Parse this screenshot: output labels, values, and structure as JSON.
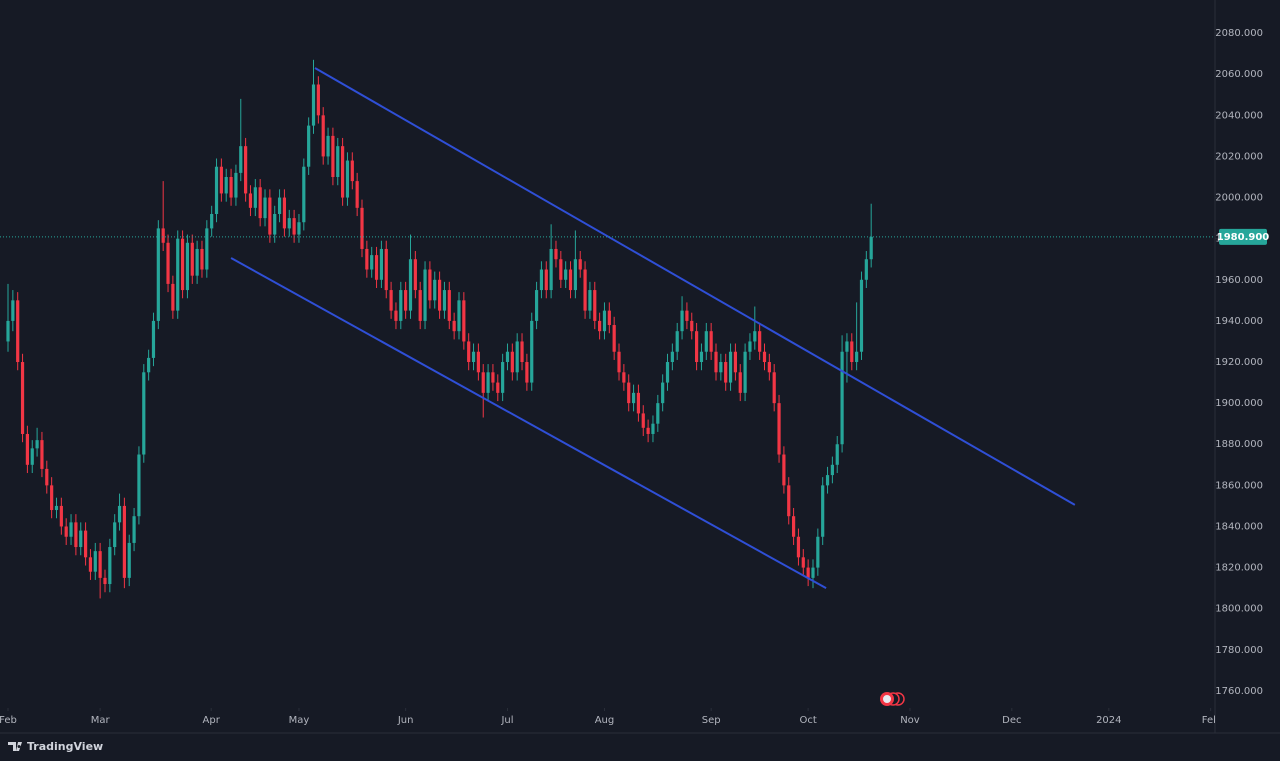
{
  "chart_data": {
    "type": "candlestick",
    "up_color": "#26a69a",
    "down_color": "#f23645",
    "line_color": "#2f4fd6",
    "xlim": [
      -1.65,
      248.9
    ],
    "ylim": [
      1751.7,
      2096.1
    ],
    "yticks": [
      {
        "value": 2080,
        "label": "2080.000"
      },
      {
        "value": 2060,
        "label": "2060.000"
      },
      {
        "value": 2040,
        "label": "2040.000"
      },
      {
        "value": 2020,
        "label": "2020.000"
      },
      {
        "value": 2000,
        "label": "2000.000"
      },
      {
        "value": 1980,
        "label": "1980.000"
      },
      {
        "value": 1960,
        "label": "1960.000"
      },
      {
        "value": 1940,
        "label": "1940.000"
      },
      {
        "value": 1920,
        "label": "1920.000"
      },
      {
        "value": 1900,
        "label": "1900.000"
      },
      {
        "value": 1880,
        "label": "1880.000"
      },
      {
        "value": 1860,
        "label": "1860.000"
      },
      {
        "value": 1840,
        "label": "1840.000"
      },
      {
        "value": 1820,
        "label": "1820.000"
      },
      {
        "value": 1800,
        "label": "1800.000"
      },
      {
        "value": 1780,
        "label": "1780.000"
      },
      {
        "value": 1760,
        "label": "1760.000"
      }
    ],
    "xticks": [
      {
        "value": 0,
        "label": "Feb"
      },
      {
        "value": 19,
        "label": "Mar"
      },
      {
        "value": 41.9,
        "label": "Apr"
      },
      {
        "value": 60,
        "label": "May"
      },
      {
        "value": 82,
        "label": "Jun"
      },
      {
        "value": 103,
        "label": "Jul"
      },
      {
        "value": 123,
        "label": "Aug"
      },
      {
        "value": 145,
        "label": "Sep"
      },
      {
        "value": 165,
        "label": "Oct"
      },
      {
        "value": 186,
        "label": "Nov"
      },
      {
        "value": 207,
        "label": "Dec"
      },
      {
        "value": 227,
        "label": "2024"
      },
      {
        "value": 248,
        "label": "Feb"
      }
    ],
    "last_price": {
      "value": 1980.9,
      "label": "1980.900"
    },
    "trendlines": [
      {
        "points": [
          [
            63.3,
            2063
          ],
          [
            220,
            1850.5
          ]
        ]
      },
      {
        "points": [
          [
            46,
            1970.6
          ],
          [
            168.7,
            1810
          ]
        ]
      }
    ],
    "candles": [
      [
        1930,
        1958,
        1925,
        1940
      ],
      [
        1940,
        1955,
        1935,
        1950
      ],
      [
        1950,
        1954,
        1916,
        1920
      ],
      [
        1920,
        1924,
        1881,
        1885
      ],
      [
        1885,
        1889,
        1866,
        1870
      ],
      [
        1870,
        1882,
        1866,
        1878
      ],
      [
        1878,
        1888,
        1874,
        1882
      ],
      [
        1882,
        1886,
        1864,
        1868
      ],
      [
        1868,
        1872,
        1856,
        1860
      ],
      [
        1860,
        1864,
        1844,
        1848
      ],
      [
        1848,
        1854,
        1844,
        1850
      ],
      [
        1850,
        1854,
        1836,
        1840
      ],
      [
        1840,
        1844,
        1831,
        1835
      ],
      [
        1835,
        1846,
        1831,
        1842
      ],
      [
        1842,
        1846,
        1826,
        1830
      ],
      [
        1830,
        1842,
        1826,
        1838
      ],
      [
        1838,
        1842,
        1821,
        1825
      ],
      [
        1825,
        1829,
        1814,
        1818
      ],
      [
        1818,
        1832,
        1814,
        1828
      ],
      [
        1828,
        1832,
        1805,
        1815
      ],
      [
        1815,
        1819,
        1808,
        1812
      ],
      [
        1812,
        1834,
        1808,
        1830
      ],
      [
        1830,
        1846,
        1826,
        1842
      ],
      [
        1842,
        1856,
        1838,
        1850
      ],
      [
        1850,
        1854,
        1810,
        1815
      ],
      [
        1815,
        1836,
        1811,
        1832
      ],
      [
        1832,
        1849,
        1828,
        1845
      ],
      [
        1845,
        1879,
        1841,
        1875
      ],
      [
        1875,
        1919,
        1871,
        1915
      ],
      [
        1915,
        1926,
        1911,
        1922
      ],
      [
        1922,
        1944,
        1918,
        1940
      ],
      [
        1940,
        1989,
        1936,
        1985
      ],
      [
        1985,
        2008,
        1974,
        1978
      ],
      [
        1978,
        1982,
        1954,
        1958
      ],
      [
        1958,
        1962,
        1941,
        1945
      ],
      [
        1945,
        1984,
        1941,
        1980
      ],
      [
        1980,
        1984,
        1951,
        1955
      ],
      [
        1955,
        1982,
        1951,
        1978
      ],
      [
        1978,
        1982,
        1958,
        1962
      ],
      [
        1962,
        1979,
        1958,
        1975
      ],
      [
        1975,
        1979,
        1961,
        1965
      ],
      [
        1965,
        1989,
        1961,
        1985
      ],
      [
        1985,
        1996,
        1981,
        1992
      ],
      [
        1992,
        2019,
        1988,
        2015
      ],
      [
        2015,
        2019,
        1998,
        2002
      ],
      [
        2002,
        2014,
        1998,
        2010
      ],
      [
        2010,
        2014,
        1996,
        2000
      ],
      [
        2000,
        2016,
        1996,
        2012
      ],
      [
        2012,
        2048,
        2008,
        2025
      ],
      [
        2025,
        2029,
        1998,
        2002
      ],
      [
        2002,
        2006,
        1991,
        1995
      ],
      [
        1995,
        2009,
        1991,
        2005
      ],
      [
        2005,
        2009,
        1986,
        1990
      ],
      [
        1990,
        2004,
        1986,
        2000
      ],
      [
        2000,
        2004,
        1978,
        1982
      ],
      [
        1982,
        1996,
        1978,
        1992
      ],
      [
        1992,
        2004,
        1988,
        2000
      ],
      [
        2000,
        2004,
        1981,
        1985
      ],
      [
        1985,
        1994,
        1981,
        1990
      ],
      [
        1990,
        1994,
        1978,
        1982
      ],
      [
        1982,
        1992,
        1978,
        1988
      ],
      [
        1988,
        2019,
        1984,
        2015
      ],
      [
        2015,
        2039,
        2011,
        2035
      ],
      [
        2035,
        2067,
        2031,
        2055
      ],
      [
        2055,
        2059,
        2036,
        2040
      ],
      [
        2040,
        2044,
        2016,
        2020
      ],
      [
        2020,
        2034,
        2016,
        2030
      ],
      [
        2030,
        2034,
        2006,
        2010
      ],
      [
        2010,
        2029,
        2006,
        2025
      ],
      [
        2025,
        2029,
        1996,
        2000
      ],
      [
        2000,
        2022,
        1996,
        2018
      ],
      [
        2018,
        2022,
        2004,
        2008
      ],
      [
        2008,
        2012,
        1991,
        1995
      ],
      [
        1995,
        1999,
        1971,
        1975
      ],
      [
        1975,
        1979,
        1961,
        1965
      ],
      [
        1965,
        1976,
        1961,
        1972
      ],
      [
        1972,
        1976,
        1956,
        1960
      ],
      [
        1960,
        1979,
        1956,
        1975
      ],
      [
        1975,
        1979,
        1951,
        1955
      ],
      [
        1955,
        1959,
        1941,
        1945
      ],
      [
        1945,
        1949,
        1936,
        1940
      ],
      [
        1940,
        1959,
        1936,
        1955
      ],
      [
        1955,
        1959,
        1941,
        1945
      ],
      [
        1945,
        1982,
        1941,
        1970
      ],
      [
        1970,
        1974,
        1951,
        1955
      ],
      [
        1955,
        1959,
        1936,
        1940
      ],
      [
        1940,
        1969,
        1936,
        1965
      ],
      [
        1965,
        1969,
        1946,
        1950
      ],
      [
        1950,
        1964,
        1946,
        1960
      ],
      [
        1960,
        1964,
        1941,
        1945
      ],
      [
        1945,
        1959,
        1941,
        1955
      ],
      [
        1955,
        1959,
        1936,
        1940
      ],
      [
        1940,
        1944,
        1931,
        1935
      ],
      [
        1935,
        1954,
        1931,
        1950
      ],
      [
        1950,
        1954,
        1926,
        1930
      ],
      [
        1930,
        1934,
        1916,
        1920
      ],
      [
        1920,
        1929,
        1916,
        1925
      ],
      [
        1925,
        1929,
        1911,
        1915
      ],
      [
        1915,
        1919,
        1893,
        1905
      ],
      [
        1905,
        1919,
        1901,
        1915
      ],
      [
        1915,
        1919,
        1906,
        1910
      ],
      [
        1910,
        1914,
        1901,
        1905
      ],
      [
        1905,
        1924,
        1901,
        1920
      ],
      [
        1920,
        1929,
        1916,
        1925
      ],
      [
        1925,
        1929,
        1911,
        1915
      ],
      [
        1915,
        1934,
        1911,
        1930
      ],
      [
        1930,
        1934,
        1916,
        1920
      ],
      [
        1920,
        1924,
        1906,
        1910
      ],
      [
        1910,
        1944,
        1906,
        1940
      ],
      [
        1940,
        1959,
        1936,
        1955
      ],
      [
        1955,
        1969,
        1951,
        1965
      ],
      [
        1965,
        1969,
        1951,
        1955
      ],
      [
        1955,
        1987,
        1951,
        1975
      ],
      [
        1975,
        1979,
        1966,
        1970
      ],
      [
        1970,
        1974,
        1956,
        1960
      ],
      [
        1960,
        1969,
        1956,
        1965
      ],
      [
        1965,
        1969,
        1951,
        1955
      ],
      [
        1955,
        1984,
        1951,
        1970
      ],
      [
        1970,
        1974,
        1961,
        1965
      ],
      [
        1965,
        1969,
        1941,
        1945
      ],
      [
        1945,
        1959,
        1941,
        1955
      ],
      [
        1955,
        1959,
        1936,
        1940
      ],
      [
        1940,
        1944,
        1931,
        1935
      ],
      [
        1935,
        1949,
        1931,
        1945
      ],
      [
        1945,
        1949,
        1934,
        1938
      ],
      [
        1938,
        1942,
        1921,
        1925
      ],
      [
        1925,
        1929,
        1911,
        1915
      ],
      [
        1915,
        1919,
        1906,
        1910
      ],
      [
        1910,
        1914,
        1896,
        1900
      ],
      [
        1900,
        1909,
        1896,
        1905
      ],
      [
        1905,
        1909,
        1891,
        1895
      ],
      [
        1895,
        1899,
        1884,
        1888
      ],
      [
        1888,
        1892,
        1881,
        1885
      ],
      [
        1885,
        1894,
        1881,
        1890
      ],
      [
        1890,
        1904,
        1886,
        1900
      ],
      [
        1900,
        1914,
        1896,
        1910
      ],
      [
        1910,
        1924,
        1906,
        1920
      ],
      [
        1920,
        1929,
        1916,
        1925
      ],
      [
        1925,
        1939,
        1921,
        1935
      ],
      [
        1935,
        1952,
        1931,
        1945
      ],
      [
        1945,
        1949,
        1936,
        1940
      ],
      [
        1940,
        1944,
        1931,
        1935
      ],
      [
        1935,
        1939,
        1916,
        1920
      ],
      [
        1920,
        1929,
        1916,
        1925
      ],
      [
        1925,
        1939,
        1921,
        1935
      ],
      [
        1935,
        1939,
        1921,
        1925
      ],
      [
        1925,
        1929,
        1911,
        1915
      ],
      [
        1915,
        1924,
        1911,
        1920
      ],
      [
        1920,
        1924,
        1906,
        1910
      ],
      [
        1910,
        1929,
        1906,
        1925
      ],
      [
        1925,
        1929,
        1911,
        1915
      ],
      [
        1915,
        1919,
        1901,
        1905
      ],
      [
        1905,
        1929,
        1901,
        1925
      ],
      [
        1925,
        1934,
        1921,
        1930
      ],
      [
        1930,
        1947,
        1926,
        1935
      ],
      [
        1935,
        1939,
        1921,
        1925
      ],
      [
        1925,
        1929,
        1916,
        1920
      ],
      [
        1920,
        1924,
        1911,
        1915
      ],
      [
        1915,
        1919,
        1896,
        1900
      ],
      [
        1900,
        1904,
        1871,
        1875
      ],
      [
        1875,
        1879,
        1856,
        1860
      ],
      [
        1860,
        1864,
        1841,
        1845
      ],
      [
        1845,
        1849,
        1831,
        1835
      ],
      [
        1835,
        1839,
        1821,
        1825
      ],
      [
        1825,
        1829,
        1816,
        1820
      ],
      [
        1820,
        1824,
        1811,
        1815
      ],
      [
        1815,
        1824,
        1810,
        1820
      ],
      [
        1820,
        1839,
        1816,
        1835
      ],
      [
        1835,
        1864,
        1831,
        1860
      ],
      [
        1860,
        1869,
        1856,
        1865
      ],
      [
        1865,
        1874,
        1861,
        1870
      ],
      [
        1870,
        1884,
        1866,
        1880
      ],
      [
        1880,
        1933,
        1876,
        1925
      ],
      [
        1925,
        1934,
        1910,
        1930
      ],
      [
        1930,
        1934,
        1916,
        1920
      ],
      [
        1920,
        1949,
        1916,
        1925
      ],
      [
        1925,
        1964,
        1921,
        1960
      ],
      [
        1960,
        1974,
        1956,
        1970
      ],
      [
        1970,
        1997,
        1966,
        1980.9
      ]
    ]
  },
  "branding": "TradingView"
}
